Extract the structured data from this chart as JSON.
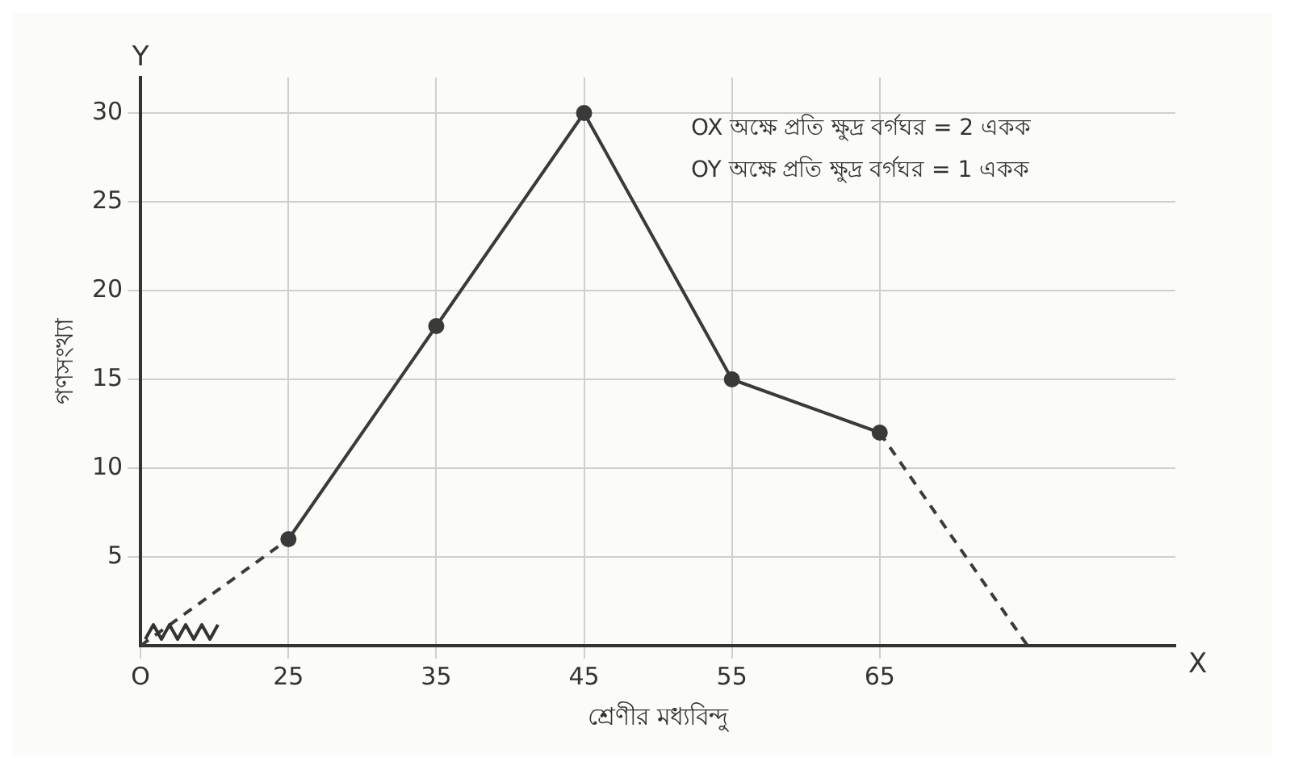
{
  "chart_data": {
    "type": "line",
    "xlabel": "শ্রেণীর মধ্যবিন্দু",
    "ylabel": "গণসংখ্যা",
    "annotations": [
      "OX অক্ষে প্রতি ক্ষুদ্র বর্গঘর = 2 একক",
      "OY অক্ষে প্রতি ক্ষুদ্র বর্গঘর = 1 একক",
      "X",
      "Y"
    ],
    "xlim": [
      15,
      85
    ],
    "xticks": [
      {
        "value": 15,
        "label": "O"
      },
      25,
      35,
      45,
      55,
      65
    ],
    "ylim": [
      0,
      32
    ],
    "yticks": [
      5,
      10,
      15,
      20,
      25,
      30
    ],
    "grid": true,
    "legend": false,
    "series": [
      {
        "color": "#3a3a3a",
        "x": [
          25,
          35,
          45,
          55,
          65
        ],
        "values": [
          6,
          18,
          30,
          15,
          12
        ],
        "marker": "circle",
        "line_style": "solid"
      },
      {
        "color": "#3a3a3a",
        "x": [
          15,
          25
        ],
        "values": [
          0,
          6
        ],
        "marker": "none",
        "line_style": "dashed"
      },
      {
        "color": "#3a3a3a",
        "x": [
          65,
          75
        ],
        "values": [
          12,
          0
        ],
        "marker": "none",
        "line_style": "dashed"
      }
    ]
  }
}
